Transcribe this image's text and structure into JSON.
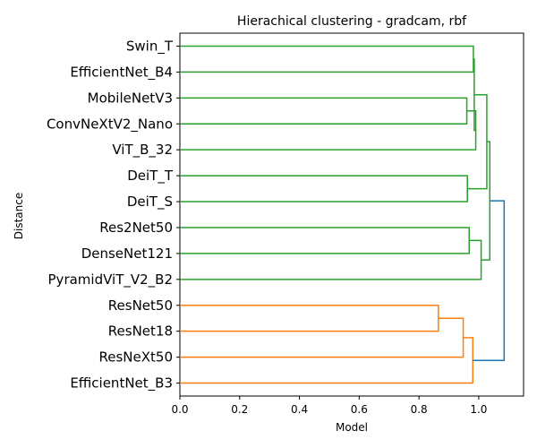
{
  "chart_data": {
    "type": "dendrogram",
    "title": "Hierachical clustering - gradcam, rbf",
    "xlabel": "Model",
    "ylabel": "Distance",
    "orientation": "left",
    "xlim": [
      0,
      1.15
    ],
    "xticks": [
      0.0,
      0.2,
      0.4,
      0.6,
      0.8,
      1.0
    ],
    "xtick_labels": [
      "0.0",
      "0.2",
      "0.4",
      "0.6",
      "0.8",
      "1.0"
    ],
    "leaves": [
      "Swin_T",
      "EfficientNet_B4",
      "MobileNetV3",
      "ConvNeXtV2_Nano",
      "ViT_B_32",
      "DeiT_T",
      "DeiT_S",
      "Res2Net50",
      "DenseNet121",
      "PyramidViT_V2_B2",
      "ResNet50",
      "ResNet18",
      "ResNeXt50",
      "EfficientNet_B3"
    ],
    "merges": [
      {
        "a": "ResNet50",
        "b": "ResNet18",
        "height": 0.865,
        "color": "#ff7f0e"
      },
      {
        "a": "MobileNetV3",
        "b": "ConvNeXtV2_Nano",
        "height": 0.96,
        "color": "#2ca02c"
      },
      {
        "a": "DeiT_T",
        "b": "DeiT_S",
        "height": 0.962,
        "color": "#2ca02c"
      },
      {
        "a": "Res2Net50",
        "b": "DenseNet121",
        "height": 0.968,
        "color": "#2ca02c"
      },
      {
        "a": "m:ResNet50+ResNet18",
        "b": "ResNeXt50",
        "height": 0.948,
        "color": "#ff7f0e"
      },
      {
        "a": "m:ResNet50+ResNet18+ResNeXt50",
        "b": "EfficientNet_B3",
        "height": 0.98,
        "color": "#ff7f0e"
      },
      {
        "a": "Swin_T",
        "b": "EfficientNet_B4",
        "height": 0.982,
        "color": "#2ca02c"
      },
      {
        "a": "m:MobileNetV3+ConvNeXtV2_Nano",
        "b": "ViT_B_32",
        "height": 0.99,
        "color": "#2ca02c"
      },
      {
        "a": "m:Swin_T+EfficientNet_B4",
        "b": "m:MobileNetV3+ConvNeXtV2_Nano+ViT_B_32",
        "height": 0.985,
        "color": "#2ca02c"
      },
      {
        "a": "m:Res2Net50+DenseNet121",
        "b": "PyramidViT_V2_B2",
        "height": 1.008,
        "color": "#2ca02c"
      },
      {
        "a": "m:Swin_T..ViT_B_32",
        "b": "m:DeiT_T+DeiT_S",
        "height": 1.027,
        "color": "#2ca02c"
      },
      {
        "a": "m:Swin_T..DeiT_S",
        "b": "m:Res2Net50..PyramidViT_V2_B2",
        "height": 1.037,
        "color": "#2ca02c"
      },
      {
        "a": "m:green",
        "b": "m:orange",
        "height": 1.085,
        "color": "#1f77b4"
      }
    ]
  }
}
